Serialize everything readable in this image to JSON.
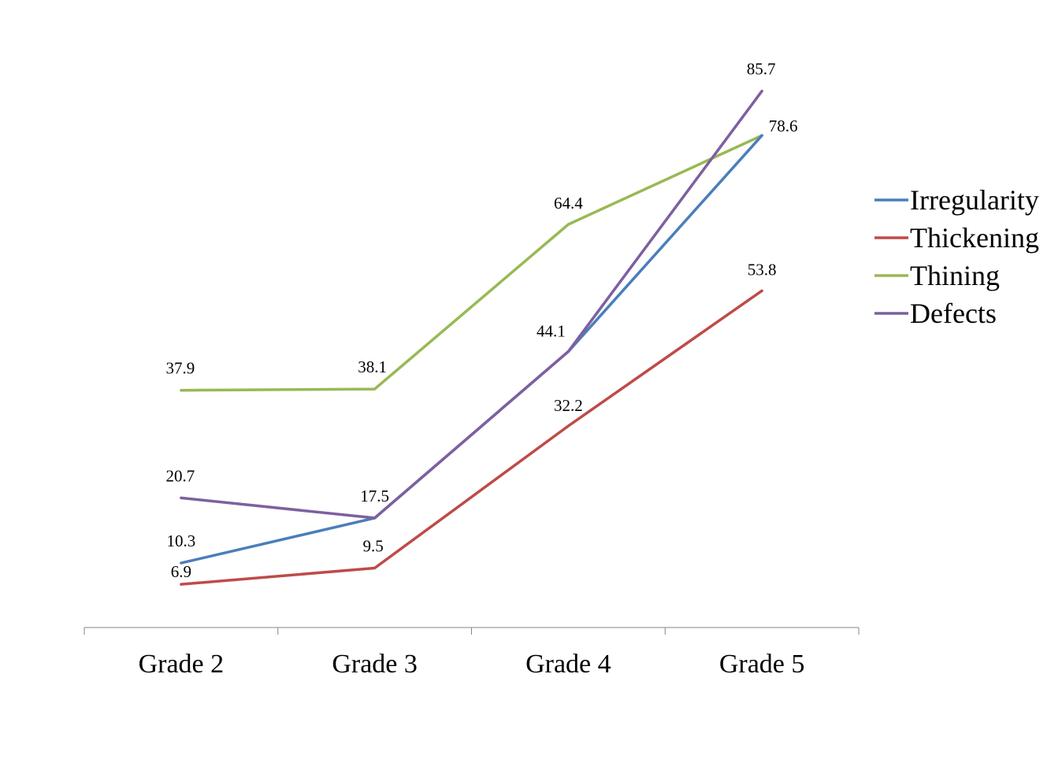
{
  "chart_data": {
    "type": "line",
    "categories": [
      "Grade 2",
      "Grade 3",
      "Grade 4",
      "Grade 5"
    ],
    "series": [
      {
        "name": "Irregularity",
        "color": "#4a7ebb",
        "values": [
          10.3,
          17.5,
          44.1,
          78.6
        ]
      },
      {
        "name": "Thickening",
        "color": "#be4b48",
        "values": [
          6.9,
          9.5,
          32.2,
          53.8
        ]
      },
      {
        "name": "Thining",
        "color": "#98b954",
        "values": [
          37.9,
          38.1,
          64.4,
          78.6
        ]
      },
      {
        "name": "Defects",
        "color": "#7d60a0",
        "values": [
          20.7,
          17.5,
          44.1,
          85.7
        ]
      }
    ],
    "data_labels": [
      {
        "text": "10.3",
        "series": "Irregularity",
        "index": 0
      },
      {
        "text": "17.5",
        "series": "Irregularity",
        "index": 1
      },
      {
        "text": "44.1",
        "series": "Irregularity",
        "index": 2
      },
      {
        "text": "78.6",
        "series": "Irregularity",
        "index": 3
      },
      {
        "text": "6.9",
        "series": "Thickening",
        "index": 0
      },
      {
        "text": "9.5",
        "series": "Thickening",
        "index": 1
      },
      {
        "text": "32.2",
        "series": "Thickening",
        "index": 2
      },
      {
        "text": "53.8",
        "series": "Thickening",
        "index": 3
      },
      {
        "text": "37.9",
        "series": "Thining",
        "index": 0
      },
      {
        "text": "38.1",
        "series": "Thining",
        "index": 1
      },
      {
        "text": "64.4",
        "series": "Thining",
        "index": 2
      },
      {
        "text": "20.7",
        "series": "Defects",
        "index": 0
      },
      {
        "text": "85.7",
        "series": "Defects",
        "index": 3
      }
    ],
    "title": "",
    "xlabel": "",
    "ylabel": "",
    "ylim": [
      0,
      100
    ],
    "grid": false,
    "y_axis_visible": false,
    "legend_position": "right"
  }
}
